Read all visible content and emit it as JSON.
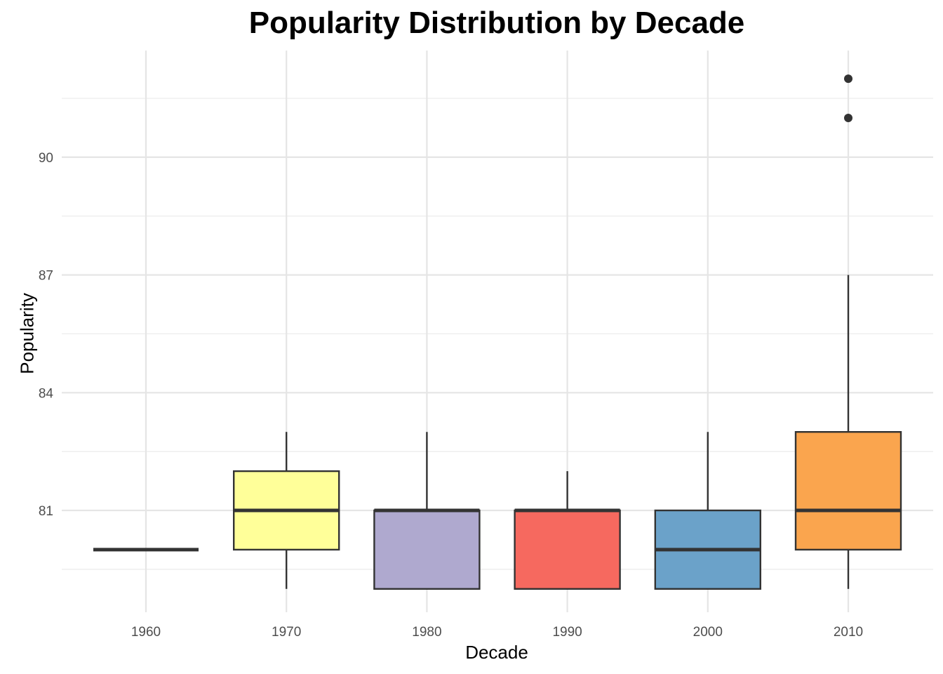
{
  "chart_data": {
    "type": "box",
    "title": "Popularity Distribution by Decade",
    "xlabel": "Decade",
    "ylabel": "Popularity",
    "categories": [
      "1960",
      "1970",
      "1980",
      "1990",
      "2000",
      "2010"
    ],
    "yticks": [
      81,
      84,
      87,
      90
    ],
    "ylim": [
      78.4,
      93.0
    ],
    "grid": true,
    "legend": "none",
    "boxes": [
      {
        "category": "1960",
        "min": 80,
        "q1": 80,
        "median": 80,
        "q3": 80,
        "max": 80,
        "outliers": [],
        "color": "#8DD3C7"
      },
      {
        "category": "1970",
        "min": 79,
        "q1": 80,
        "median": 81,
        "q3": 82,
        "max": 83,
        "outliers": [],
        "color": "#FFFF99"
      },
      {
        "category": "1980",
        "min": 79,
        "q1": 79,
        "median": 81,
        "q3": 81,
        "max": 83,
        "outliers": [],
        "color": "#AFA9CF"
      },
      {
        "category": "1990",
        "min": 79,
        "q1": 79,
        "median": 81,
        "q3": 81,
        "max": 82,
        "outliers": [],
        "color": "#F6695F"
      },
      {
        "category": "2000",
        "min": 79,
        "q1": 79,
        "median": 80,
        "q3": 81,
        "max": 83,
        "outliers": [],
        "color": "#6BA2C9"
      },
      {
        "category": "2010",
        "min": 79,
        "q1": 80,
        "median": 81,
        "q3": 83,
        "max": 87,
        "outliers": [
          91,
          92
        ],
        "color": "#FAA54E"
      }
    ]
  }
}
